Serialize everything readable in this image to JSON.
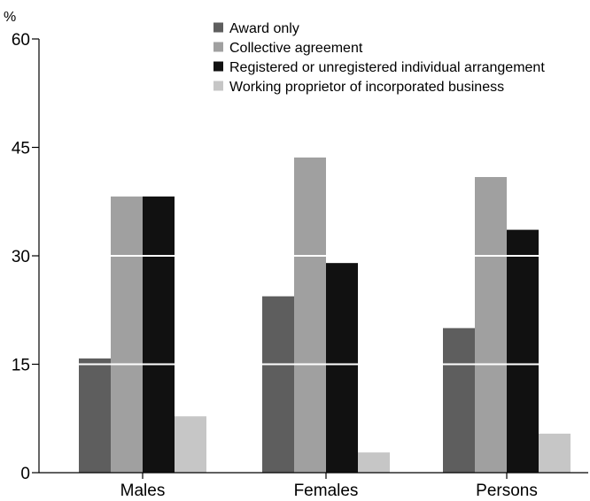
{
  "chart_data": {
    "type": "bar",
    "title": "",
    "xlabel": "",
    "ylabel": "%",
    "ylim": [
      0,
      60
    ],
    "yticks": [
      "0",
      "15",
      "30",
      "45",
      "60"
    ],
    "categories": [
      "Males",
      "Females",
      "Persons"
    ],
    "series": [
      {
        "name": "Award only",
        "color": "#5e5e5e",
        "values": [
          15.8,
          24.4,
          20.0
        ]
      },
      {
        "name": "Collective agreement",
        "color": "#a0a0a0",
        "values": [
          38.2,
          43.6,
          40.9
        ]
      },
      {
        "name": "Registered or unregistered individual arrangement",
        "color": "#111111",
        "values": [
          38.2,
          29.0,
          33.6
        ]
      },
      {
        "name": "Working proprietor of incorporated business",
        "color": "#c6c6c6",
        "values": [
          7.8,
          2.8,
          5.4
        ]
      }
    ],
    "grid": true,
    "legend_position": "top"
  }
}
